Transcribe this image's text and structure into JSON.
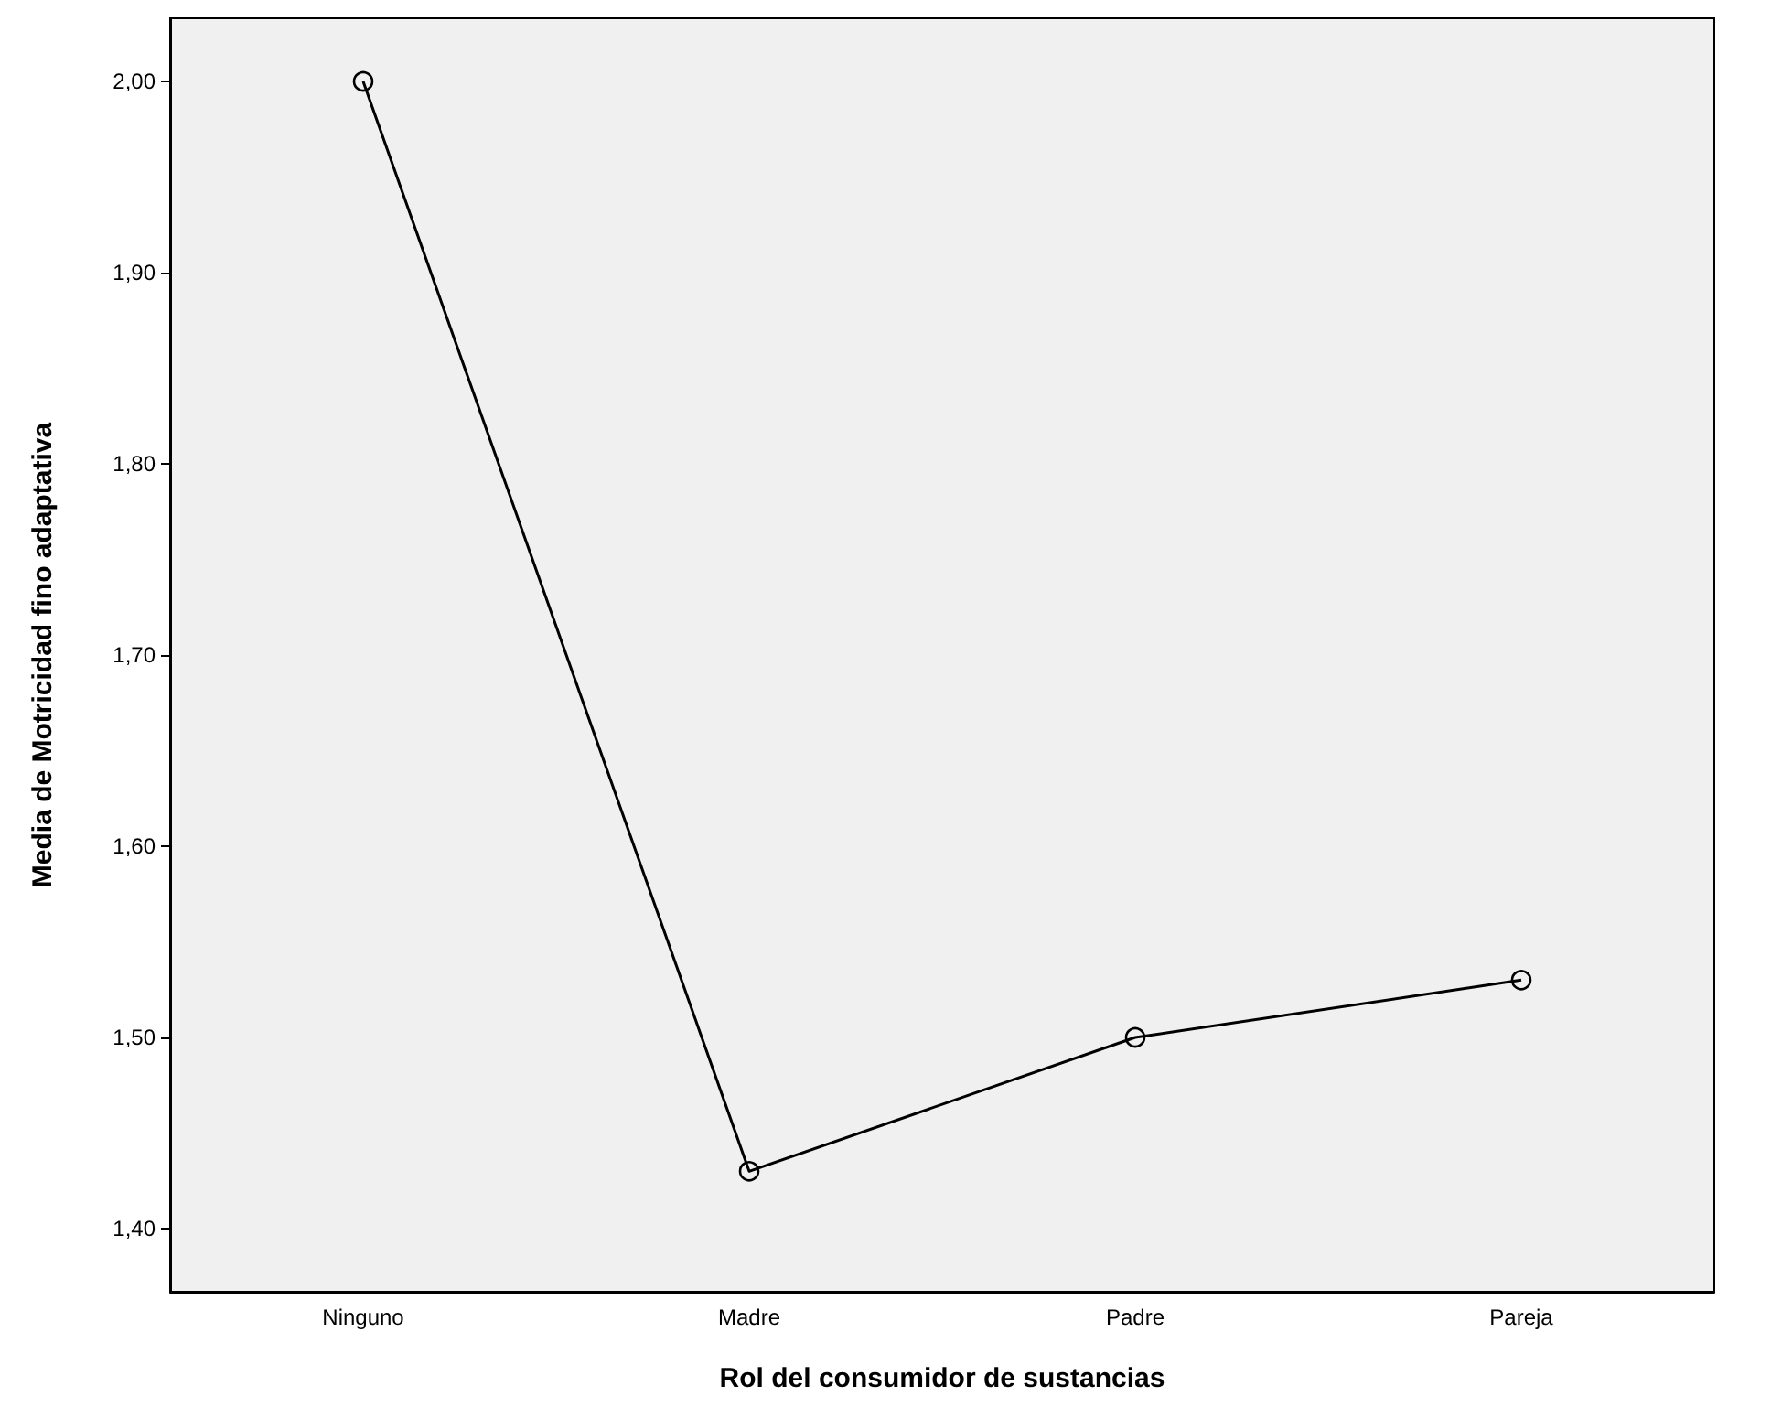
{
  "chart_data": {
    "type": "line",
    "xlabel": "Rol del consumidor de sustancias",
    "ylabel": "Media de Motricidad fino adaptativa",
    "categories": [
      "Ninguno",
      "Madre",
      "Padre",
      "Pareja"
    ],
    "series": [
      {
        "color": "#000000",
        "values": [
          2.0,
          1.43,
          1.5,
          1.53
        ]
      }
    ],
    "ylim": [
      1.367,
      2.033
    ],
    "yticks": [
      {
        "value": 1.4,
        "label": "1,40"
      },
      {
        "value": 1.5,
        "label": "1,50"
      },
      {
        "value": 1.6,
        "label": "1,60"
      },
      {
        "value": 1.7,
        "label": "1,70"
      },
      {
        "value": 1.8,
        "label": "1,80"
      },
      {
        "value": 1.9,
        "label": "1,90"
      },
      {
        "value": 2.0,
        "label": "2,00"
      }
    ],
    "grid": false,
    "marker": "circle",
    "line_style": "solid"
  }
}
